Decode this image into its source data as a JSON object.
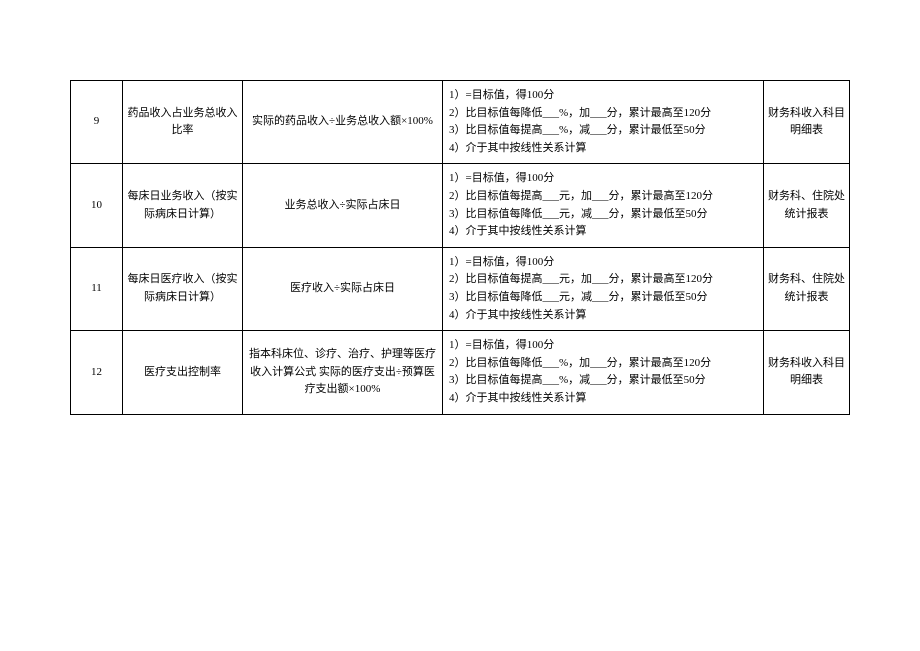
{
  "table": {
    "rows": [
      {
        "num": "9",
        "name": "药品收入占业务总收入比率",
        "formula": "实际的药品收入÷业务总收入额×100%",
        "scoring": "1）=目标值，得100分\n2）比目标值每降低___%，加___分，累计最高至120分\n3）比目标值每提高___%，减___分，累计最低至50分\n4）介于其中按线性关系计算",
        "source": "财务科收入科目明细表"
      },
      {
        "num": "10",
        "name": "每床日业务收入（按实际病床日计算）",
        "formula": "业务总收入÷实际占床日",
        "scoring": "1）=目标值，得100分\n2）比目标值每提高___元，加___分，累计最高至120分\n3）比目标值每降低___元，减___分，累计最低至50分\n4）介于其中按线性关系计算",
        "source": "财务科、住院处统计报表"
      },
      {
        "num": "11",
        "name": "每床日医疗收入（按实际病床日计算）",
        "formula": "医疗收入÷实际占床日",
        "scoring": "1）=目标值，得100分\n2）比目标值每提高___元，加___分，累计最高至120分\n3）比目标值每降低___元，减___分，累计最低至50分\n4）介于其中按线性关系计算",
        "source": "财务科、住院处统计报表"
      },
      {
        "num": "12",
        "name": "医疗支出控制率",
        "formula": "指本科床位、诊疗、治疗、护理等医疗收入计算公式  实际的医疗支出÷预算医疗支出额×100%",
        "scoring": "1）=目标值，得100分\n2）比目标值每降低___%，加___分，累计最高至120分\n3）比目标值每提高___%，减___分，累计最低至50分\n4）介于其中按线性关系计算",
        "source": "财务科收入科目明细表"
      }
    ]
  }
}
